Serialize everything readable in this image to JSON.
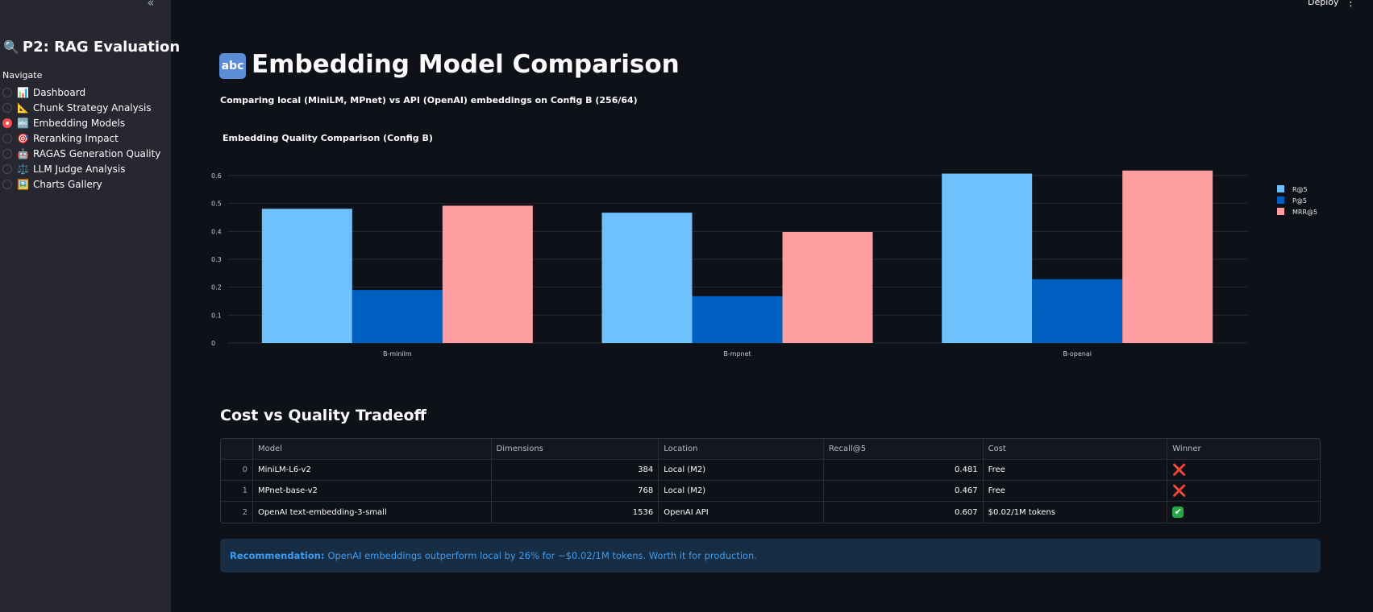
{
  "sidebar": {
    "title_emoji": "🔍",
    "title": "P2: RAG Evaluation",
    "nav_label": "Navigate",
    "items": [
      {
        "emoji": "📊",
        "label": "Dashboard"
      },
      {
        "emoji": "📐",
        "label": "Chunk Strategy Analysis"
      },
      {
        "emoji": "🔤",
        "label": "Embedding Models"
      },
      {
        "emoji": "🎯",
        "label": "Reranking Impact"
      },
      {
        "emoji": "🤖",
        "label": "RAGAS Generation Quality"
      },
      {
        "emoji": "⚖️",
        "label": "LLM Judge Analysis"
      },
      {
        "emoji": "🖼️",
        "label": "Charts Gallery"
      }
    ],
    "selected_index": 2,
    "collapse_icon": "«"
  },
  "header": {
    "deploy_label": "Deploy",
    "menu_icon": "⋮"
  },
  "main": {
    "title_badge": "abc",
    "title": "Embedding Model Comparison",
    "subtitle": "Comparing local (MiniLM, MPnet) vs API (OpenAI) embeddings on Config B (256/64)",
    "section_title": "Cost vs Quality Tradeoff",
    "recommendation_label": "Recommendation:",
    "recommendation_text": "OpenAI embeddings outperform local by 26% for ~$0.02/1M tokens. Worth it for production."
  },
  "chart_data": {
    "type": "bar",
    "title": "Embedding Quality Comparison (Config B)",
    "categories": [
      "B-minilm",
      "B-mpnet",
      "B-openai"
    ],
    "series": [
      {
        "name": "R@5",
        "values": [
          0.481,
          0.467,
          0.607
        ],
        "color": "#6ec1fc"
      },
      {
        "name": "P@5",
        "values": [
          0.19,
          0.168,
          0.229
        ],
        "color": "#0060c2"
      },
      {
        "name": "MRR@5",
        "values": [
          0.492,
          0.398,
          0.618
        ],
        "color": "#ff9ea0"
      }
    ],
    "ylim": [
      0,
      0.6
    ],
    "yticks": [
      "0",
      "0.1",
      "0.2",
      "0.3",
      "0.4",
      "0.5",
      "0.6"
    ],
    "grid": true,
    "legend": "top-right"
  },
  "table": {
    "columns": [
      "",
      "Model",
      "Dimensions",
      "Location",
      "Recall@5",
      "Cost",
      "Winner"
    ],
    "rows": [
      {
        "index": "0",
        "model": "MiniLM-L6-v2",
        "dimensions": "384",
        "location": "Local (M2)",
        "recall": "0.481",
        "cost": "Free",
        "winner": "❌",
        "winner_icon": "cross-mark-icon"
      },
      {
        "index": "1",
        "model": "MPnet-base-v2",
        "dimensions": "768",
        "location": "Local (M2)",
        "recall": "0.467",
        "cost": "Free",
        "winner": "❌",
        "winner_icon": "cross-mark-icon"
      },
      {
        "index": "2",
        "model": "OpenAI text-embedding-3-small",
        "dimensions": "1536",
        "location": "OpenAI API",
        "recall": "0.607",
        "cost": "$0.02/1M tokens",
        "winner": "✔",
        "winner_icon": "check-mark-icon"
      }
    ]
  }
}
